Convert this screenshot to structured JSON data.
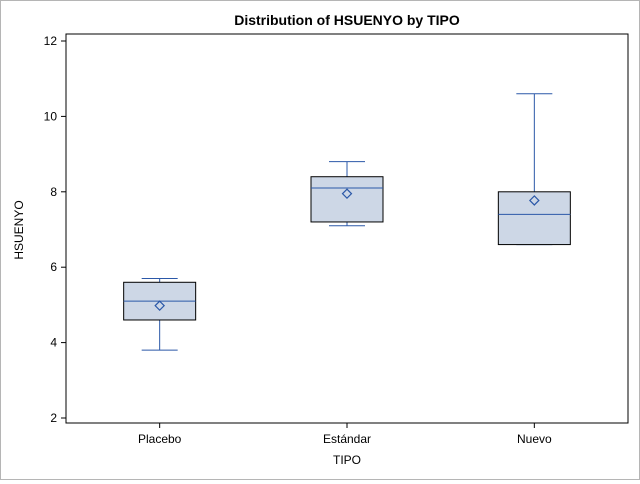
{
  "chart_data": {
    "type": "box",
    "title": "Distribution of HSUENYO by TIPO",
    "xlabel": "TIPO",
    "ylabel": "HSUENYO",
    "ylim": [
      2,
      12
    ],
    "yticks": [
      2,
      4,
      6,
      8,
      10,
      12
    ],
    "categories": [
      "Placebo",
      "Estándar",
      "Nuevo"
    ],
    "boxes": [
      {
        "category": "Placebo",
        "min": 3.8,
        "q1": 4.6,
        "median": 5.1,
        "q3": 5.6,
        "max": 5.7,
        "mean": 4.98
      },
      {
        "category": "Estándar",
        "min": 7.1,
        "q1": 7.2,
        "median": 8.1,
        "q3": 8.4,
        "max": 8.8,
        "mean": 7.95
      },
      {
        "category": "Nuevo",
        "min": 6.6,
        "q1": 6.6,
        "median": 7.4,
        "q3": 8.0,
        "max": 10.6,
        "mean": 7.77
      }
    ],
    "grid": false,
    "legend": false,
    "colors": {
      "box_fill": "#cdd7e6",
      "box_edge": "#000000",
      "whisker": "#2b58a8",
      "median": "#2b58a8",
      "mean_marker": "#2b58a8"
    }
  }
}
